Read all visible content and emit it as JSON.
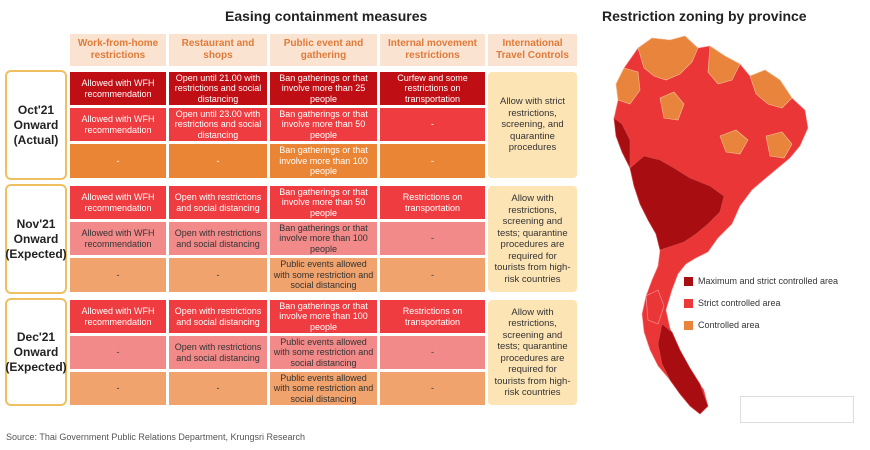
{
  "titles": {
    "easing": "Easing containment measures",
    "zoning": "Restriction zoning by province"
  },
  "columns": [
    "Work-from-home restrictions",
    "Restaurant and shops",
    "Public event and gathering",
    "Internal movement restrictions",
    "International Travel Controls"
  ],
  "periods": [
    {
      "label": "Oct'21\nOnward\n(Actual)",
      "rows": [
        [
          "Allowed with WFH recommendation",
          "Open until 21.00 with restrictions and social distancing",
          "Ban gatherings or that involve more than 25 people",
          "Curfew and some restrictions on transportation"
        ],
        [
          "Allowed with WFH recommendation",
          "Open until 23.00 with restrictions and social distancing",
          "Ban gatherings or that involve more than 50 people",
          "-"
        ],
        [
          "-",
          "-",
          "Ban gatherings or that involve more than 100 people",
          "-"
        ]
      ],
      "international": "Allow with strict restrictions, screening, and quarantine procedures"
    },
    {
      "label": "Nov'21\nOnward\n(Expected)",
      "rows": [
        [
          "Allowed with WFH recommendation",
          "Open with restrictions and social distancing",
          "Ban gatherings or that involve more than 50 people",
          "Restrictions on transportation"
        ],
        [
          "Allowed with WFH recommendation",
          "Open with restrictions and social distancing",
          "Ban gatherings or that involve more than 100 people",
          "-"
        ],
        [
          "-",
          "-",
          "Public events allowed with some restriction and social distancing",
          "-"
        ]
      ],
      "international": "Allow with restrictions, screening and tests; quarantine procedures are required for tourists from high-risk countries"
    },
    {
      "label": "Dec'21\nOnward\n(Expected)",
      "rows": [
        [
          "Allowed with WFH recommendation",
          "Open with restrictions and social distancing",
          "Ban gatherings or that involve more than 100 people",
          "Restrictions on transportation"
        ],
        [
          "-",
          "Open with restrictions and social distancing",
          "Public events allowed with some restriction and social distancing",
          "-"
        ],
        [
          "-",
          "-",
          "Public events allowed with some restriction and social distancing",
          "-"
        ]
      ],
      "international": "Allow with restrictions, screening and tests; quarantine procedures are required for tourists from high-risk countries"
    }
  ],
  "legend": [
    {
      "label": "Maximum and strict controlled area",
      "color": "#a80d12"
    },
    {
      "label": "Strict controlled area",
      "color": "#ec3a3a"
    },
    {
      "label": "Controlled area",
      "color": "#e8843c"
    }
  ],
  "colors": {
    "max": "#c00e15",
    "strict": "#ef3c40",
    "pink": "#f28a8a",
    "orange": "#ea8535",
    "peach": "#f0a36c"
  },
  "source": "Source: Thai Government Public Relations Department, Krungsri Research"
}
